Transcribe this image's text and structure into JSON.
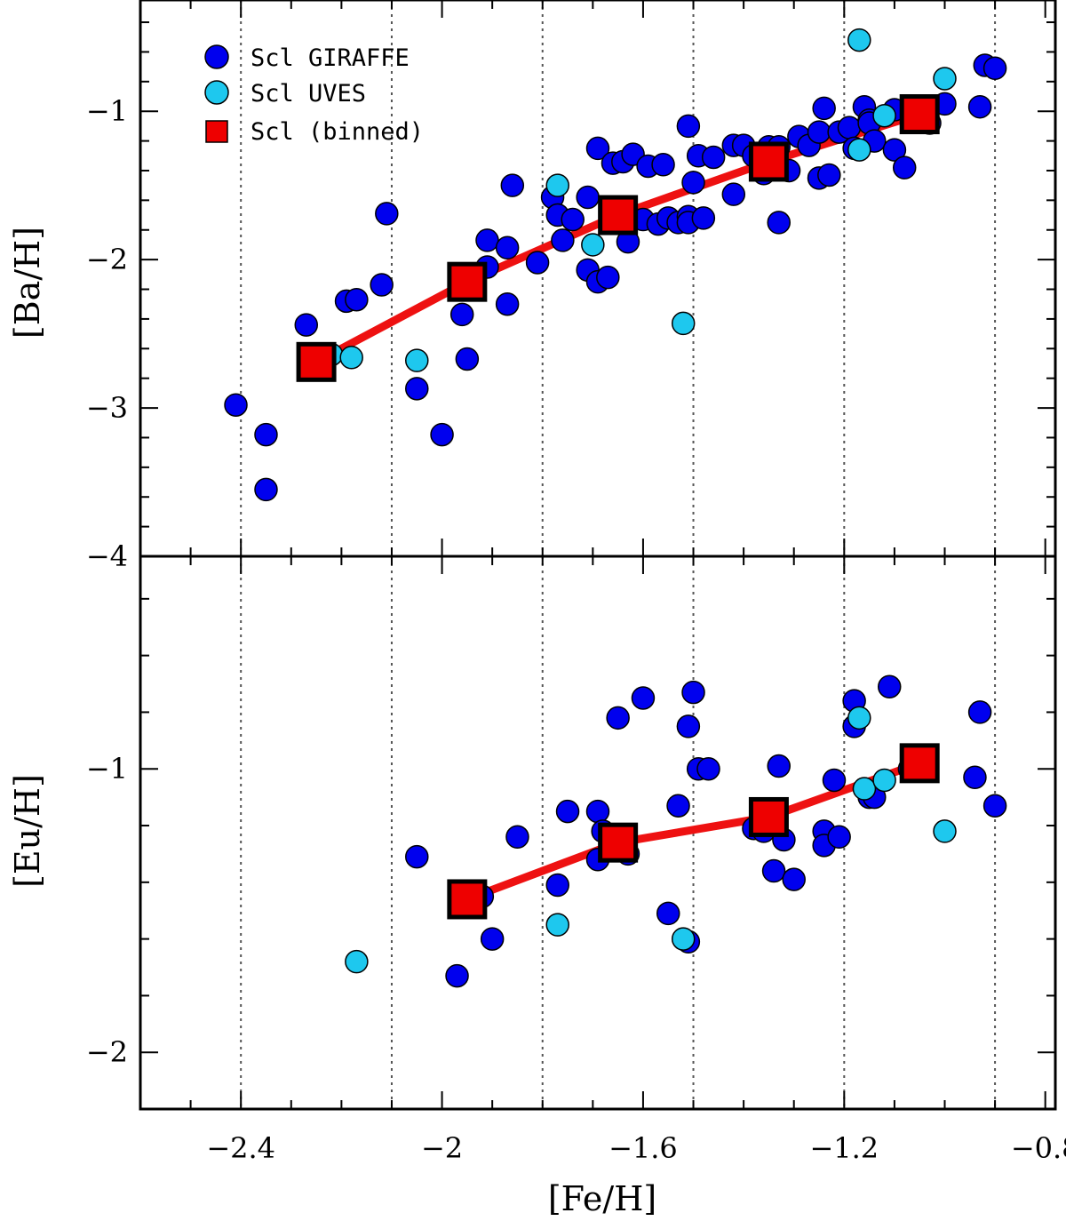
{
  "chart_data": [
    {
      "type": "scatter",
      "panel": "top",
      "xlim": [
        -2.6,
        -0.78
      ],
      "ylim": [
        -4,
        -0.25
      ],
      "ylabel": "[Ba/H]",
      "yticks": [
        -1,
        -2,
        -3,
        -4
      ],
      "ytick_labels": [
        "−1",
        "−2",
        "−3",
        "−4"
      ],
      "legend": {
        "placement": "top-left",
        "entries": [
          "Scl GIRAFFE",
          "Scl UVES",
          "Scl (binned)"
        ]
      },
      "series": [
        {
          "name": "Scl GIRAFFE",
          "marker": "circle",
          "color": "#0000ee",
          "points": [
            [
              -2.41,
              -2.98
            ],
            [
              -2.35,
              -3.18
            ],
            [
              -2.35,
              -3.55
            ],
            [
              -2.27,
              -2.44
            ],
            [
              -2.19,
              -2.28
            ],
            [
              -2.17,
              -2.27
            ],
            [
              -2.12,
              -2.17
            ],
            [
              -2.11,
              -1.69
            ],
            [
              -2.05,
              -2.87
            ],
            [
              -2.0,
              -3.18
            ],
            [
              -1.96,
              -2.37
            ],
            [
              -1.95,
              -2.67
            ],
            [
              -1.91,
              -1.87
            ],
            [
              -1.91,
              -2.05
            ],
            [
              -1.87,
              -1.92
            ],
            [
              -1.87,
              -2.3
            ],
            [
              -1.86,
              -1.5
            ],
            [
              -1.81,
              -2.02
            ],
            [
              -1.78,
              -1.58
            ],
            [
              -1.77,
              -1.7
            ],
            [
              -1.76,
              -1.87
            ],
            [
              -1.74,
              -1.73
            ],
            [
              -1.71,
              -1.58
            ],
            [
              -1.71,
              -2.07
            ],
            [
              -1.69,
              -2.15
            ],
            [
              -1.69,
              -1.25
            ],
            [
              -1.67,
              -2.12
            ],
            [
              -1.66,
              -1.35
            ],
            [
              -1.64,
              -1.34
            ],
            [
              -1.63,
              -1.88
            ],
            [
              -1.62,
              -1.29
            ],
            [
              -1.6,
              -1.73
            ],
            [
              -1.59,
              -1.37
            ],
            [
              -1.57,
              -1.76
            ],
            [
              -1.56,
              -1.36
            ],
            [
              -1.55,
              -1.72
            ],
            [
              -1.53,
              -1.75
            ],
            [
              -1.51,
              -1.71
            ],
            [
              -1.51,
              -1.1
            ],
            [
              -1.51,
              -1.75
            ],
            [
              -1.5,
              -1.48
            ],
            [
              -1.49,
              -1.3
            ],
            [
              -1.48,
              -1.72
            ],
            [
              -1.46,
              -1.31
            ],
            [
              -1.42,
              -1.56
            ],
            [
              -1.42,
              -1.23
            ],
            [
              -1.4,
              -1.23
            ],
            [
              -1.38,
              -1.3
            ],
            [
              -1.36,
              -1.42
            ],
            [
              -1.35,
              -1.24
            ],
            [
              -1.33,
              -1.24
            ],
            [
              -1.33,
              -1.75
            ],
            [
              -1.31,
              -1.4
            ],
            [
              -1.29,
              -1.17
            ],
            [
              -1.27,
              -1.23
            ],
            [
              -1.25,
              -1.45
            ],
            [
              -1.25,
              -1.14
            ],
            [
              -1.24,
              -0.98
            ],
            [
              -1.23,
              -1.43
            ],
            [
              -1.21,
              -1.14
            ],
            [
              -1.19,
              -1.11
            ],
            [
              -1.18,
              -1.25
            ],
            [
              -1.16,
              -0.97
            ],
            [
              -1.15,
              -1.06
            ],
            [
              -1.15,
              -1.08
            ],
            [
              -1.14,
              -1.2
            ],
            [
              -1.1,
              -0.99
            ],
            [
              -1.1,
              -1.26
            ],
            [
              -1.08,
              -1.38
            ],
            [
              -1.03,
              -1.08
            ],
            [
              -1.0,
              -0.95
            ],
            [
              -0.93,
              -0.97
            ],
            [
              -0.92,
              -0.69
            ],
            [
              -0.9,
              -0.71
            ]
          ]
        },
        {
          "name": "Scl UVES",
          "marker": "circle",
          "color": "#1ec8ee",
          "points": [
            [
              -2.22,
              -2.64
            ],
            [
              -2.18,
              -2.66
            ],
            [
              -2.05,
              -2.68
            ],
            [
              -1.77,
              -1.5
            ],
            [
              -1.7,
              -1.9
            ],
            [
              -1.52,
              -2.43
            ],
            [
              -1.17,
              -0.52
            ],
            [
              -1.17,
              -1.26
            ],
            [
              -1.12,
              -1.03
            ],
            [
              -1.0,
              -0.78
            ]
          ]
        },
        {
          "name": "Scl (binned)",
          "marker": "square",
          "color": "#ee0000",
          "points": [
            [
              -2.25,
              -2.69
            ],
            [
              -1.95,
              -2.15
            ],
            [
              -1.65,
              -1.7
            ],
            [
              -1.35,
              -1.34
            ],
            [
              -1.05,
              -1.02
            ]
          ]
        }
      ]
    },
    {
      "type": "scatter",
      "panel": "bottom",
      "xlim": [
        -2.6,
        -0.78
      ],
      "ylim": [
        -2.2,
        -0.25
      ],
      "xlabel": "[Fe/H]",
      "ylabel": "[Eu/H]",
      "xticks": [
        -2.4,
        -2.0,
        -1.6,
        -1.2,
        -0.8
      ],
      "xtick_labels": [
        "−2.4",
        "−2",
        "−1.6",
        "−1.2",
        "−0.8"
      ],
      "yticks": [
        -1,
        -2
      ],
      "ytick_labels": [
        "−1",
        "−2"
      ],
      "vlines": [
        -2.4,
        -2.1,
        -1.8,
        -1.5,
        -1.2,
        -0.9
      ],
      "series": [
        {
          "name": "Scl GIRAFFE",
          "marker": "circle",
          "color": "#0000ee",
          "points": [
            [
              -2.05,
              -1.31
            ],
            [
              -1.97,
              -1.73
            ],
            [
              -1.94,
              -1.45
            ],
            [
              -1.92,
              -1.45
            ],
            [
              -1.9,
              -1.6
            ],
            [
              -1.85,
              -1.24
            ],
            [
              -1.77,
              -1.41
            ],
            [
              -1.75,
              -1.15
            ],
            [
              -1.69,
              -1.32
            ],
            [
              -1.69,
              -1.15
            ],
            [
              -1.68,
              -1.22
            ],
            [
              -1.65,
              -0.82
            ],
            [
              -1.63,
              -1.3
            ],
            [
              -1.6,
              -0.75
            ],
            [
              -1.55,
              -1.51
            ],
            [
              -1.53,
              -1.13
            ],
            [
              -1.51,
              -1.61
            ],
            [
              -1.51,
              -0.85
            ],
            [
              -1.5,
              -0.73
            ],
            [
              -1.49,
              -1.0
            ],
            [
              -1.47,
              -1.0
            ],
            [
              -1.38,
              -1.21
            ],
            [
              -1.36,
              -1.22
            ],
            [
              -1.34,
              -1.36
            ],
            [
              -1.33,
              -0.99
            ],
            [
              -1.32,
              -1.25
            ],
            [
              -1.3,
              -1.39
            ],
            [
              -1.24,
              -1.22
            ],
            [
              -1.24,
              -1.27
            ],
            [
              -1.22,
              -1.04
            ],
            [
              -1.21,
              -1.24
            ],
            [
              -1.18,
              -0.76
            ],
            [
              -1.18,
              -0.85
            ],
            [
              -1.15,
              -1.1
            ],
            [
              -1.14,
              -1.1
            ],
            [
              -1.11,
              -0.71
            ],
            [
              -1.07,
              -1.0
            ],
            [
              -0.94,
              -1.03
            ],
            [
              -0.93,
              -0.8
            ],
            [
              -0.9,
              -1.13
            ]
          ]
        },
        {
          "name": "Scl UVES",
          "marker": "circle",
          "color": "#1ec8ee",
          "points": [
            [
              -2.17,
              -1.68
            ],
            [
              -1.77,
              -1.55
            ],
            [
              -1.52,
              -1.6
            ],
            [
              -1.17,
              -0.82
            ],
            [
              -1.16,
              -1.07
            ],
            [
              -1.12,
              -1.04
            ],
            [
              -1.0,
              -1.22
            ]
          ]
        },
        {
          "name": "Scl (binned)",
          "marker": "square",
          "color": "#ee0000",
          "points": [
            [
              -1.95,
              -1.46
            ],
            [
              -1.65,
              -1.26
            ],
            [
              -1.35,
              -1.17
            ],
            [
              -1.05,
              -0.98
            ]
          ]
        }
      ]
    }
  ],
  "legend_colors": {
    "Scl GIRAFFE": "#0000ee",
    "Scl UVES": "#1ec8ee",
    "Scl (binned)": "#ee0000"
  }
}
